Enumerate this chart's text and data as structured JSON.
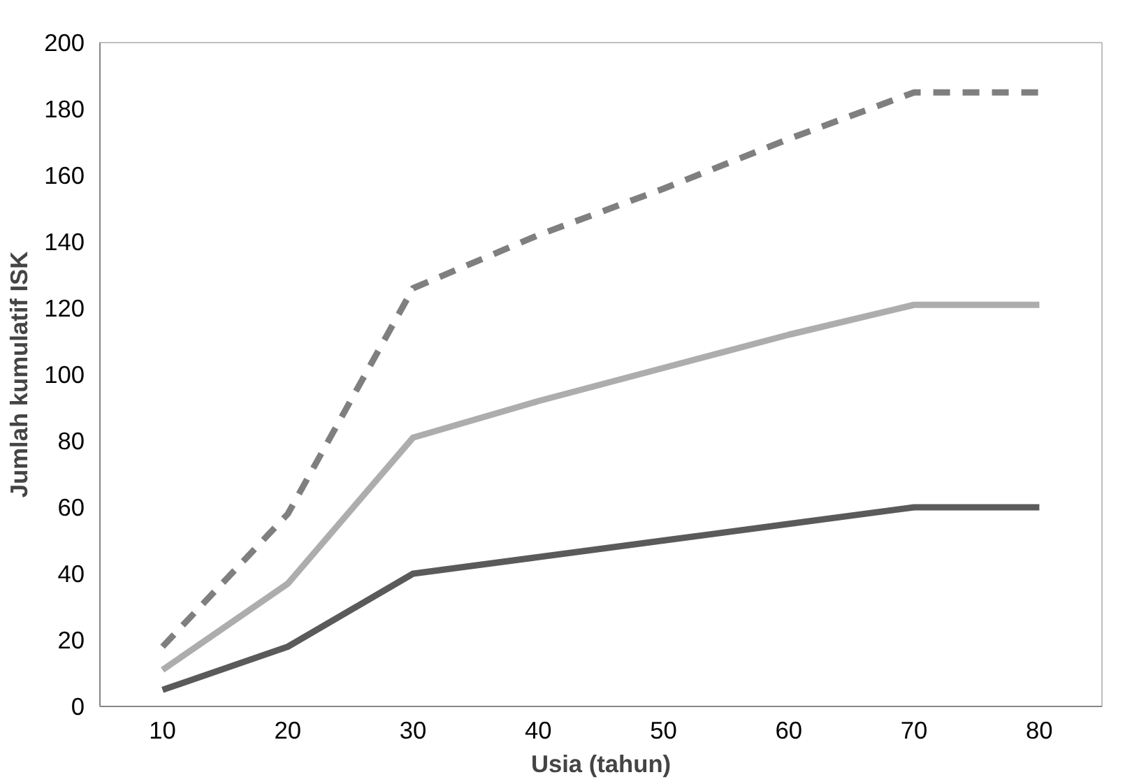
{
  "chart_data": {
    "type": "line",
    "xlabel": "Usia (tahun)",
    "ylabel": "Jumlah kumulatif ISK",
    "categories": [
      "10",
      "20",
      "30",
      "40",
      "50",
      "60",
      "70",
      "80"
    ],
    "series": [
      {
        "color": "#5a5a5a",
        "values": [
          5,
          18,
          40,
          45,
          50,
          55,
          60,
          60
        ]
      },
      {
        "color": "#adadad",
        "values": [
          11,
          37,
          81,
          92,
          102,
          112,
          121,
          121
        ]
      },
      {
        "color": "#7f7f7f",
        "values": [
          18,
          58,
          126,
          142,
          156,
          171,
          185,
          185
        ],
        "line_style": "dashed"
      }
    ],
    "ylim": [
      0,
      200
    ],
    "yticks": [
      0,
      20,
      40,
      60,
      80,
      100,
      120,
      140,
      160,
      180,
      200
    ],
    "grid": false,
    "marker": "none",
    "line_style": "solid"
  }
}
